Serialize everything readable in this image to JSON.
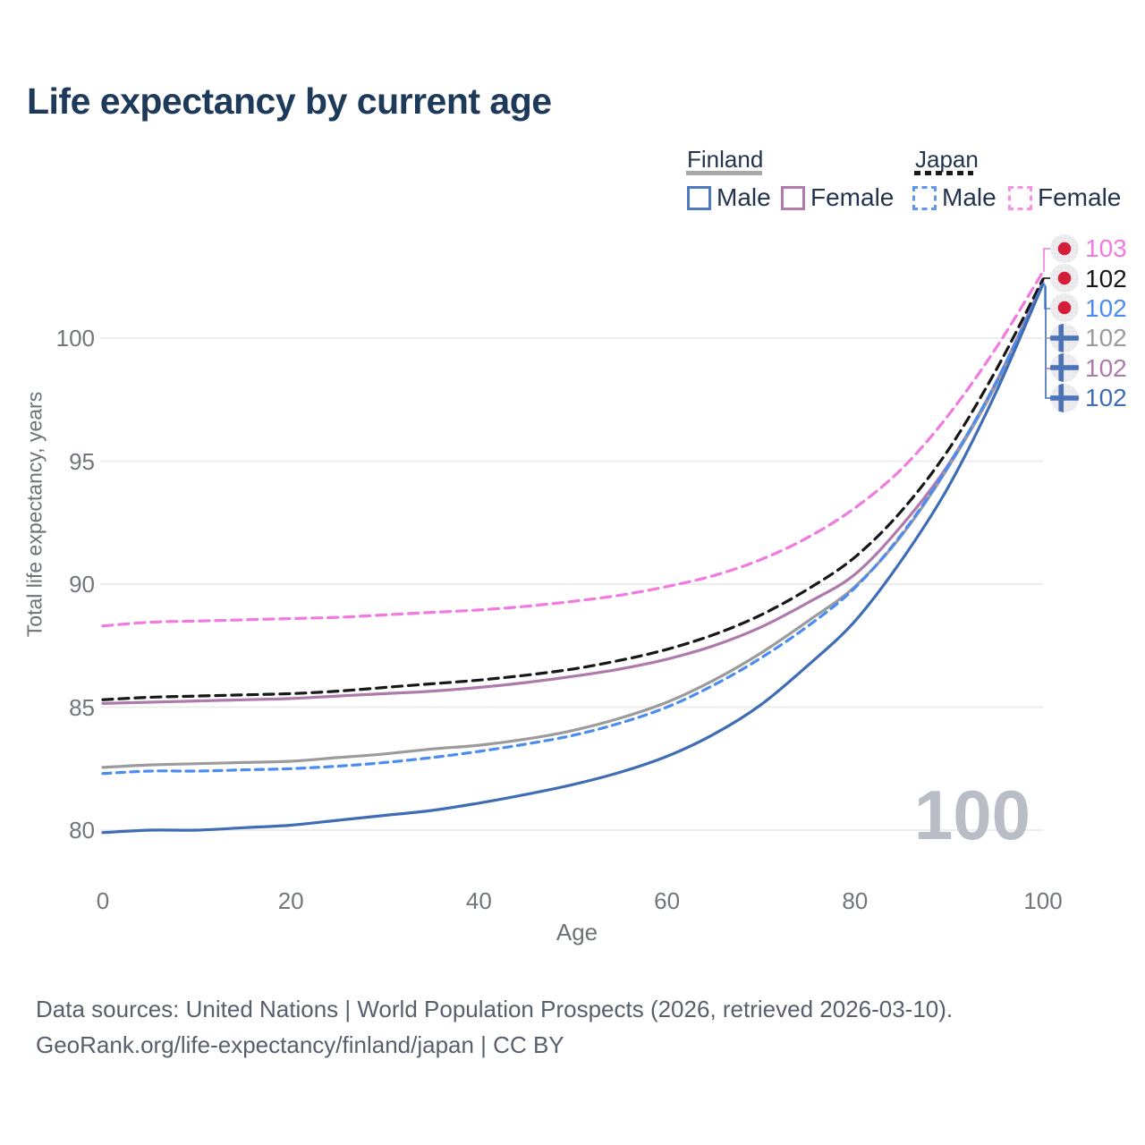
{
  "title": "Life expectancy by current age",
  "legend": {
    "finland": {
      "label": "Finland",
      "male": "Male",
      "female": "Female"
    },
    "japan": {
      "label": "Japan",
      "male": "Male",
      "female": "Female"
    }
  },
  "end_labels": [
    {
      "flag": "japan",
      "value": "103",
      "color": "#f279df"
    },
    {
      "flag": "japan",
      "value": "102",
      "color": "#171717"
    },
    {
      "flag": "japan",
      "value": "102",
      "color": "#4b8cf2"
    },
    {
      "flag": "finland",
      "value": "102",
      "color": "#9b9b9b"
    },
    {
      "flag": "finland",
      "value": "102",
      "color": "#ad7aab"
    },
    {
      "flag": "finland",
      "value": "102",
      "color": "#3e6db5"
    }
  ],
  "watermark": "100",
  "axes": {
    "ylabel": "Total life expectancy, years",
    "xlabel": "Age"
  },
  "footer": {
    "line1": "Data sources: United Nations | World Population Prospects (2026, retrieved 2026-03-10).",
    "line2": "GeoRank.org/life-expectancy/finland/japan | CC BY"
  },
  "colors": {
    "title": "#1e3a5b",
    "grid": "#ededee",
    "tick_text": "#71757c",
    "watermark": "#b9bdc6",
    "japan_flag_red": "#d51c38",
    "finland_flag_blue": "#4b74b8",
    "flag_bg": "#e9e9ed"
  },
  "chart_data": {
    "type": "line",
    "title": "Life expectancy by current age",
    "xlabel": "Age",
    "ylabel": "Total life expectancy, years",
    "xlim": [
      0,
      100
    ],
    "ylim": [
      78.6,
      103.6
    ],
    "xticks": [
      0,
      20,
      40,
      60,
      80,
      100
    ],
    "yticks": [
      80,
      85,
      90,
      95,
      100
    ],
    "grid": "horizontal-only",
    "legend_position": "top-right",
    "x": [
      0,
      5,
      10,
      15,
      20,
      25,
      30,
      35,
      40,
      45,
      50,
      55,
      60,
      65,
      70,
      75,
      80,
      85,
      90,
      95,
      100
    ],
    "series": [
      {
        "name": "Japan Female",
        "country": "Japan",
        "sex": "Female",
        "color": "#f279df",
        "dash": "dashed",
        "end_value_label": "103",
        "values": [
          88.3,
          88.45,
          88.5,
          88.55,
          88.6,
          88.65,
          88.75,
          88.85,
          88.95,
          89.1,
          89.3,
          89.55,
          89.9,
          90.35,
          91.0,
          91.9,
          93.1,
          94.7,
          96.9,
          99.6,
          102.7
        ]
      },
      {
        "name": "Japan",
        "country": "Japan",
        "sex": "Total",
        "color": "#171717",
        "dash": "dashed",
        "end_value_label": "102",
        "values": [
          85.3,
          85.4,
          85.45,
          85.5,
          85.55,
          85.65,
          85.8,
          85.95,
          86.1,
          86.3,
          86.55,
          86.9,
          87.35,
          87.95,
          88.75,
          89.8,
          91.1,
          93.0,
          95.5,
          98.7,
          102.4
        ]
      },
      {
        "name": "Finland Female",
        "country": "Finland",
        "sex": "Female",
        "color": "#ad7aab",
        "dash": "solid",
        "end_value_label": "102",
        "values": [
          85.15,
          85.2,
          85.25,
          85.3,
          85.35,
          85.45,
          85.55,
          85.65,
          85.8,
          86.0,
          86.25,
          86.55,
          86.95,
          87.5,
          88.25,
          89.25,
          90.4,
          92.4,
          94.9,
          98.2,
          102.3
        ]
      },
      {
        "name": "Finland",
        "country": "Finland",
        "sex": "Total",
        "color": "#9b9b9b",
        "dash": "solid",
        "end_value_label": "102",
        "values": [
          82.55,
          82.65,
          82.7,
          82.75,
          82.8,
          82.95,
          83.1,
          83.3,
          83.45,
          83.7,
          84.05,
          84.55,
          85.2,
          86.1,
          87.2,
          88.5,
          89.9,
          92.0,
          94.8,
          98.1,
          102.2
        ]
      },
      {
        "name": "Japan Male",
        "country": "Japan",
        "sex": "Male",
        "color": "#4b8cf2",
        "dash": "dashed",
        "end_value_label": "102",
        "values": [
          82.3,
          82.4,
          82.4,
          82.45,
          82.5,
          82.6,
          82.75,
          82.95,
          83.2,
          83.5,
          83.85,
          84.35,
          85.0,
          85.9,
          87.0,
          88.3,
          89.85,
          92.05,
          94.85,
          98.2,
          102.2
        ]
      },
      {
        "name": "Finland Male",
        "country": "Finland",
        "sex": "Male",
        "color": "#3e6db5",
        "dash": "solid",
        "end_value_label": "102",
        "values": [
          79.9,
          80.0,
          80.0,
          80.1,
          80.2,
          80.4,
          80.6,
          80.8,
          81.1,
          81.45,
          81.85,
          82.35,
          83.0,
          83.9,
          85.1,
          86.7,
          88.5,
          91.0,
          94.0,
          97.8,
          102.2
        ]
      }
    ],
    "watermark": "100"
  }
}
